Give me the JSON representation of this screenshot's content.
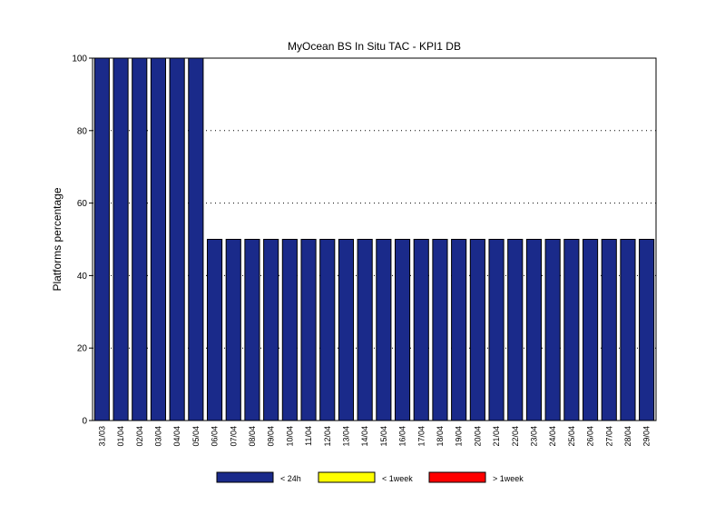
{
  "chart_data": {
    "type": "bar",
    "title": "MyOcean  BS In Situ TAC - KPI1  DB",
    "xlabel": "",
    "ylabel": "Platforms percentage",
    "ylim": [
      0,
      100
    ],
    "yticks": [
      0,
      20,
      40,
      60,
      80,
      100
    ],
    "grid": "horizontal dotted",
    "legend_position": "bottom",
    "categories": [
      "31/03",
      "01/04",
      "02/04",
      "03/04",
      "04/04",
      "05/04",
      "06/04",
      "07/04",
      "08/04",
      "09/04",
      "10/04",
      "11/04",
      "12/04",
      "13/04",
      "14/04",
      "15/04",
      "16/04",
      "17/04",
      "18/04",
      "19/04",
      "20/04",
      "21/04",
      "22/04",
      "23/04",
      "24/04",
      "25/04",
      "26/04",
      "27/04",
      "28/04",
      "29/04"
    ],
    "series": [
      {
        "name": "< 24h",
        "color": "#1a2a8a",
        "values": [
          100,
          100,
          100,
          100,
          100,
          100,
          50,
          50,
          50,
          50,
          50,
          50,
          50,
          50,
          50,
          50,
          50,
          50,
          50,
          50,
          50,
          50,
          50,
          50,
          50,
          50,
          50,
          50,
          50,
          50
        ]
      },
      {
        "name": "< 1week",
        "color": "#ffff00",
        "values": [
          0,
          0,
          0,
          0,
          0,
          0,
          0,
          0,
          0,
          0,
          0,
          0,
          0,
          0,
          0,
          0,
          0,
          0,
          0,
          0,
          0,
          0,
          0,
          0,
          0,
          0,
          0,
          0,
          0,
          0
        ]
      },
      {
        "name": "> 1week",
        "color": "#ff0000",
        "values": [
          0,
          0,
          0,
          0,
          0,
          0,
          0,
          0,
          0,
          0,
          0,
          0,
          0,
          0,
          0,
          0,
          0,
          0,
          0,
          0,
          0,
          0,
          0,
          0,
          0,
          0,
          0,
          0,
          0,
          0
        ]
      }
    ]
  }
}
